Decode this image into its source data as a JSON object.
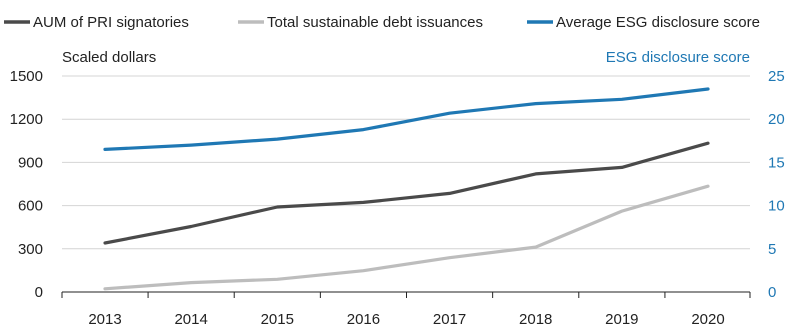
{
  "chart_data": {
    "type": "line",
    "title": "",
    "categories": [
      "2013",
      "2014",
      "2015",
      "2016",
      "2017",
      "2018",
      "2019",
      "2020"
    ],
    "series": [
      {
        "name": "AUM of PRI signatories",
        "axis": "left",
        "color": "#4a4a4a",
        "values": [
          340,
          455,
          590,
          622,
          685,
          820,
          865,
          1033
        ]
      },
      {
        "name": "Total sustainable debt issuances",
        "axis": "left",
        "color": "#bdbdbd",
        "values": [
          22,
          65,
          88,
          148,
          238,
          312,
          562,
          735
        ]
      },
      {
        "name": "Average ESG disclosure score",
        "axis": "right",
        "color": "#1f78b4",
        "values": [
          16.5,
          17.0,
          17.7,
          18.8,
          20.7,
          21.8,
          22.3,
          23.5
        ]
      }
    ],
    "left_axis": {
      "label": "Scaled dollars",
      "ylim": [
        0,
        1500
      ],
      "ticks": [
        "0",
        "300",
        "600",
        "900",
        "1200",
        "1500"
      ],
      "tick_values": [
        0,
        300,
        600,
        900,
        1200,
        1500
      ]
    },
    "right_axis": {
      "label": "ESG disclosure score",
      "ylim": [
        0,
        25
      ],
      "color": "#1f78b4",
      "ticks": [
        "0",
        "5",
        "10",
        "15",
        "20",
        "25"
      ],
      "tick_values": [
        0,
        5,
        10,
        15,
        20,
        25
      ]
    },
    "grid": true,
    "legend": "top"
  }
}
